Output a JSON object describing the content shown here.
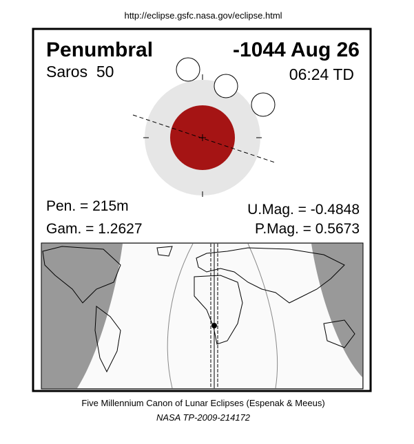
{
  "header": {
    "url": "http://eclipse.gsfc.nasa.gov/eclipse.html"
  },
  "eclipse": {
    "type": "Penumbral",
    "date": "-1044 Aug 26",
    "saros": "Saros  50",
    "time": "06:24 TD",
    "pen": "Pen. = 215m",
    "gamma": "Gam. = 1.2627",
    "umag": "U.Mag. = -0.4848",
    "pmag": "P.Mag. = 0.5673"
  },
  "footer": {
    "line1": "Five Millennium Canon of Lunar Eclipses (Espenak & Meeus)",
    "line2": "NASA TP-2009-214172"
  }
}
